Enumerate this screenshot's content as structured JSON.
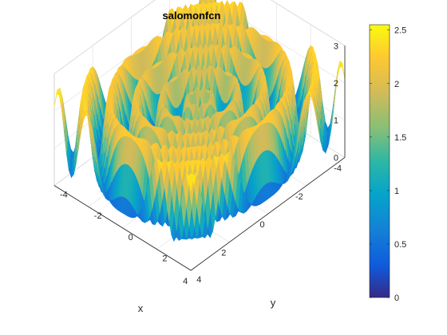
{
  "chart_data": {
    "type": "surface3d",
    "title": "salomonfcn",
    "function": "salomon",
    "xlabel": "x",
    "ylabel": "y",
    "zlabel": "",
    "xlim": [
      -4,
      4
    ],
    "ylim": [
      -4,
      4
    ],
    "zlim": [
      0,
      3
    ],
    "x_ticks": [
      "-4",
      "-2",
      "0",
      "2",
      "4"
    ],
    "y_ticks": [
      "-4",
      "-2",
      "0",
      "2",
      "4"
    ],
    "z_ticks": [
      "0",
      "1",
      "2",
      "3"
    ],
    "colorbar": {
      "range": [
        0,
        2.55
      ],
      "ticks": [
        "0",
        "0.5",
        "1",
        "1.5",
        "2",
        "2.5"
      ],
      "colormap": "parula"
    },
    "grid": true,
    "view": "3d, x from front-left, y from front-right",
    "colors": {
      "low": "#352a87",
      "mid": "#21b1a0",
      "high": "#f9fb0e",
      "axes": "#262626",
      "grid": "#e6e6e6"
    }
  }
}
